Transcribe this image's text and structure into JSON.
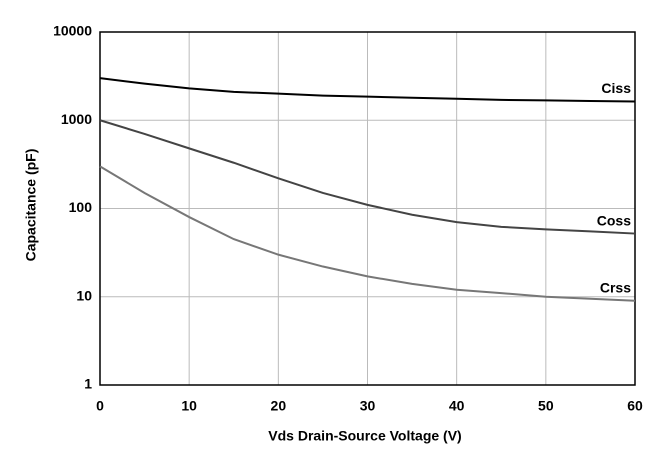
{
  "chart_data": {
    "type": "line",
    "xlabel": "Vds Drain-Source Voltage (V)",
    "ylabel": "Capacitance (pF)",
    "x": [
      0,
      5,
      10,
      15,
      20,
      25,
      30,
      35,
      40,
      45,
      50,
      55,
      60
    ],
    "series": [
      {
        "name": "Ciss",
        "color": "#000000",
        "values": [
          3000,
          2600,
          2300,
          2100,
          2000,
          1900,
          1850,
          1800,
          1750,
          1700,
          1680,
          1650,
          1630
        ]
      },
      {
        "name": "Coss",
        "color": "#444444",
        "values": [
          1000,
          700,
          480,
          330,
          220,
          150,
          110,
          85,
          70,
          62,
          58,
          55,
          52
        ]
      },
      {
        "name": "Crss",
        "color": "#777777",
        "values": [
          300,
          150,
          80,
          45,
          30,
          22,
          17,
          14,
          12,
          11,
          10,
          9.5,
          9
        ]
      }
    ],
    "xlim": [
      0,
      60
    ],
    "xticks": [
      0,
      10,
      20,
      30,
      40,
      50,
      60
    ],
    "ylim": [
      1,
      10000
    ],
    "yticks": [
      1,
      10,
      100,
      1000,
      10000
    ],
    "log_y": true,
    "grid": true
  }
}
